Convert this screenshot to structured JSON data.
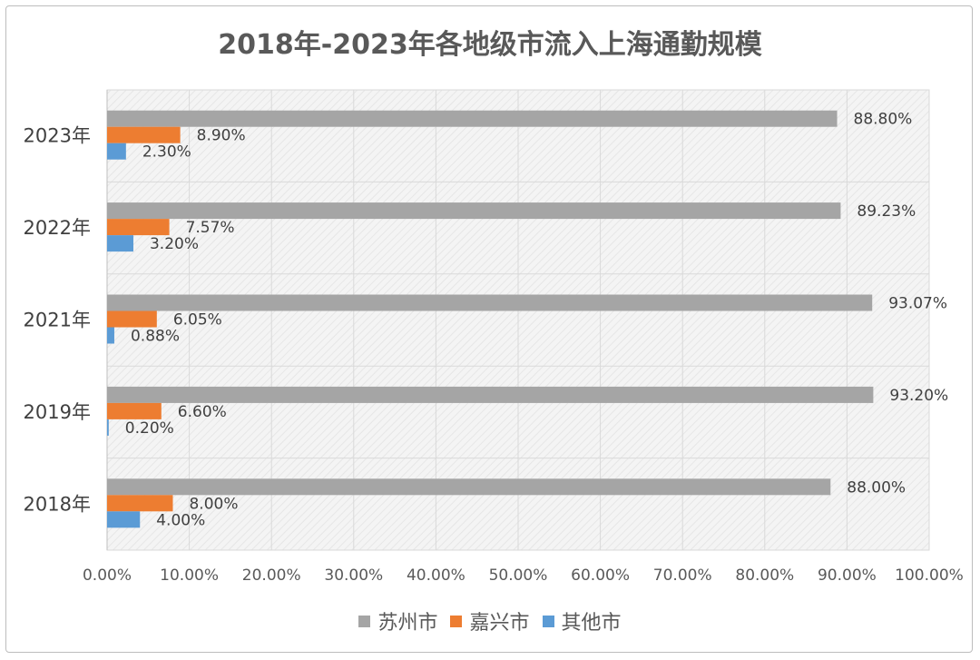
{
  "chart_data": {
    "type": "bar",
    "orientation": "horizontal",
    "title": "2018年-2023年各地级市流入上海通勤规模",
    "categories": [
      "2023年",
      "2022年",
      "2021年",
      "2019年",
      "2018年"
    ],
    "series": [
      {
        "name": "苏州市",
        "color": "#a5a5a5",
        "values": [
          88.8,
          89.23,
          93.07,
          93.2,
          88.0
        ],
        "labels": [
          "88.80%",
          "89.23%",
          "93.07%",
          "93.20%",
          "88.00%"
        ]
      },
      {
        "name": "嘉兴市",
        "color": "#ed7d31",
        "values": [
          8.9,
          7.57,
          6.05,
          6.6,
          8.0
        ],
        "labels": [
          "8.90%",
          "7.57%",
          "6.05%",
          "6.60%",
          "8.00%"
        ]
      },
      {
        "name": "其他市",
        "color": "#5b9bd5",
        "values": [
          2.3,
          3.2,
          0.88,
          0.2,
          4.0
        ],
        "labels": [
          "2.30%",
          "3.20%",
          "0.88%",
          "0.20%",
          "4.00%"
        ]
      }
    ],
    "xlim": [
      0,
      100
    ],
    "x_ticks": [
      "0.00%",
      "10.00%",
      "20.00%",
      "30.00%",
      "40.00%",
      "50.00%",
      "60.00%",
      "70.00%",
      "80.00%",
      "90.00%",
      "100.00%"
    ],
    "grid": true,
    "legend_position": "bottom"
  }
}
